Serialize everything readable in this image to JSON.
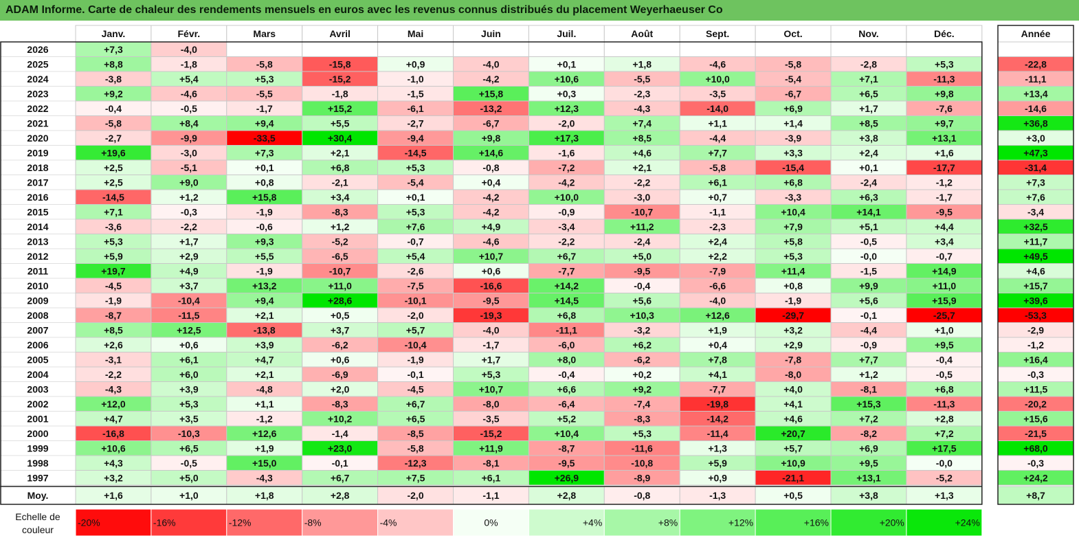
{
  "title": "ADAM Informe. Carte de chaleur des rendements mensuels en euros avec les revenus connus distribués du placement Weyerhaeuser Co",
  "chart_data": {
    "type": "heatmap",
    "columns": [
      "Janv.",
      "Févr.",
      "Mars",
      "Avril",
      "Mai",
      "Juin",
      "Juil.",
      "Août",
      "Sept.",
      "Oct.",
      "Nov.",
      "Déc."
    ],
    "year_column_label": "Année",
    "rows": [
      {
        "label": "2026",
        "values": [
          "+7,3",
          "-4,0",
          null,
          null,
          null,
          null,
          null,
          null,
          null,
          null,
          null,
          null
        ],
        "year": null
      },
      {
        "label": "2025",
        "values": [
          "+8,8",
          "-1,8",
          "-5,8",
          "-15,8",
          "+0,9",
          "-4,0",
          "+0,1",
          "+1,8",
          "-4,6",
          "-5,8",
          "-2,8",
          "+5,3"
        ],
        "year": "-22,8"
      },
      {
        "label": "2024",
        "values": [
          "-3,8",
          "+5,4",
          "+5,3",
          "-15,2",
          "-1,0",
          "-4,2",
          "+10,6",
          "-5,5",
          "+10,0",
          "-5,4",
          "+7,1",
          "-11,3"
        ],
        "year": "-11,1"
      },
      {
        "label": "2023",
        "values": [
          "+9,2",
          "-4,6",
          "-5,5",
          "-1,8",
          "-1,5",
          "+15,8",
          "+0,3",
          "-2,3",
          "-3,5",
          "-6,7",
          "+6,5",
          "+9,8"
        ],
        "year": "+13,4"
      },
      {
        "label": "2022",
        "values": [
          "-0,4",
          "-0,5",
          "-1,7",
          "+15,2",
          "-6,1",
          "-13,2",
          "+12,3",
          "-4,3",
          "-14,0",
          "+6,9",
          "+1,7",
          "-7,6"
        ],
        "year": "-14,6"
      },
      {
        "label": "2021",
        "values": [
          "-5,8",
          "+8,4",
          "+9,4",
          "+5,5",
          "-2,7",
          "-6,7",
          "-2,0",
          "+7,4",
          "+1,1",
          "+1,4",
          "+8,5",
          "+9,7"
        ],
        "year": "+36,8"
      },
      {
        "label": "2020",
        "values": [
          "-2,7",
          "-9,9",
          "-33,5",
          "+30,4",
          "-9,4",
          "+9,8",
          "+17,3",
          "+8,5",
          "-4,4",
          "-3,9",
          "+3,8",
          "+13,1"
        ],
        "year": "+3,0"
      },
      {
        "label": "2019",
        "values": [
          "+19,6",
          "-3,0",
          "+7,3",
          "+2,1",
          "-14,5",
          "+14,6",
          "-1,6",
          "+4,6",
          "+7,7",
          "+3,3",
          "+2,4",
          "+1,6"
        ],
        "year": "+47,3"
      },
      {
        "label": "2018",
        "values": [
          "+2,5",
          "-5,1",
          "+0,1",
          "+6,8",
          "+5,3",
          "-0,8",
          "-7,2",
          "+2,1",
          "-5,8",
          "-15,4",
          "+0,1",
          "-17,7"
        ],
        "year": "-31,4"
      },
      {
        "label": "2017",
        "values": [
          "+2,5",
          "+9,0",
          "+0,8",
          "-2,1",
          "-5,4",
          "+0,4",
          "-4,2",
          "-2,2",
          "+6,1",
          "+6,8",
          "-2,4",
          "-1,2"
        ],
        "year": "+7,3"
      },
      {
        "label": "2016",
        "values": [
          "-14,5",
          "+1,2",
          "+15,8",
          "+3,4",
          "+0,1",
          "-4,2",
          "+10,0",
          "-3,0",
          "+0,7",
          "-3,3",
          "+6,3",
          "-1,7"
        ],
        "year": "+7,6"
      },
      {
        "label": "2015",
        "values": [
          "+7,1",
          "-0,3",
          "-1,9",
          "-8,3",
          "+5,3",
          "-4,2",
          "-0,9",
          "-10,7",
          "-1,1",
          "+10,4",
          "+14,1",
          "-9,5"
        ],
        "year": "-3,4"
      },
      {
        "label": "2014",
        "values": [
          "-3,6",
          "-2,2",
          "-0,6",
          "+1,2",
          "+7,6",
          "+4,9",
          "-3,4",
          "+11,2",
          "-2,3",
          "+7,9",
          "+5,1",
          "+4,4"
        ],
        "year": "+32,5"
      },
      {
        "label": "2013",
        "values": [
          "+5,3",
          "+1,7",
          "+9,3",
          "-5,2",
          "-0,7",
          "-4,6",
          "-2,2",
          "-2,4",
          "+2,4",
          "+5,8",
          "-0,5",
          "+3,4"
        ],
        "year": "+11,7"
      },
      {
        "label": "2012",
        "values": [
          "+5,9",
          "+2,9",
          "+5,5",
          "-6,5",
          "+5,4",
          "+10,7",
          "+6,7",
          "+5,0",
          "+2,2",
          "+5,3",
          "-0,0",
          "-0,7"
        ],
        "year": "+49,5"
      },
      {
        "label": "2011",
        "values": [
          "+19,7",
          "+4,9",
          "-1,9",
          "-10,7",
          "-2,6",
          "+0,6",
          "-7,7",
          "-9,5",
          "-7,9",
          "+11,4",
          "-1,5",
          "+14,9"
        ],
        "year": "+4,6"
      },
      {
        "label": "2010",
        "values": [
          "-4,5",
          "+3,7",
          "+13,2",
          "+11,0",
          "-7,5",
          "-16,6",
          "+14,2",
          "-0,4",
          "-6,6",
          "+0,8",
          "+9,9",
          "+11,0"
        ],
        "year": "+15,7"
      },
      {
        "label": "2009",
        "values": [
          "-1,9",
          "-10,4",
          "+9,4",
          "+28,6",
          "-10,1",
          "-9,5",
          "+14,5",
          "+5,6",
          "-4,0",
          "-1,9",
          "+5,6",
          "+15,9"
        ],
        "year": "+39,6"
      },
      {
        "label": "2008",
        "values": [
          "-8,7",
          "-11,5",
          "+2,1",
          "+0,5",
          "-2,0",
          "-19,3",
          "+6,8",
          "+10,3",
          "+12,6",
          "-29,7",
          "-0,1",
          "-25,7"
        ],
        "year": "-53,3"
      },
      {
        "label": "2007",
        "values": [
          "+8,5",
          "+12,5",
          "-13,8",
          "+3,7",
          "+5,7",
          "-4,0",
          "-11,1",
          "-3,2",
          "+1,9",
          "+3,2",
          "-4,4",
          "+1,0"
        ],
        "year": "-2,9"
      },
      {
        "label": "2006",
        "values": [
          "+2,6",
          "+0,6",
          "+3,9",
          "-6,2",
          "-10,4",
          "-1,7",
          "-6,0",
          "+6,2",
          "+0,4",
          "+2,9",
          "-0,9",
          "+9,5"
        ],
        "year": "-1,2"
      },
      {
        "label": "2005",
        "values": [
          "-3,1",
          "+6,1",
          "+4,7",
          "+0,6",
          "-1,9",
          "+1,7",
          "+8,0",
          "-6,2",
          "+7,8",
          "-7,8",
          "+7,7",
          "-0,4"
        ],
        "year": "+16,4"
      },
      {
        "label": "2004",
        "values": [
          "-2,2",
          "+6,0",
          "+2,1",
          "-6,9",
          "-0,1",
          "+5,3",
          "-0,4",
          "+0,2",
          "+4,1",
          "-8,0",
          "+1,2",
          "-0,5"
        ],
        "year": "-0,3"
      },
      {
        "label": "2003",
        "values": [
          "-4,3",
          "+3,9",
          "-4,8",
          "+2,0",
          "-4,5",
          "+10,7",
          "+6,6",
          "+9,2",
          "-7,7",
          "+4,0",
          "-8,1",
          "+6,8"
        ],
        "year": "+11,5"
      },
      {
        "label": "2002",
        "values": [
          "+12,0",
          "+5,3",
          "+1,1",
          "-8,3",
          "+6,7",
          "-8,0",
          "-6,4",
          "-7,4",
          "-19,8",
          "+4,1",
          "+15,3",
          "-11,3"
        ],
        "year": "-20,2"
      },
      {
        "label": "2001",
        "values": [
          "+4,7",
          "+3,5",
          "-1,2",
          "+10,2",
          "+6,5",
          "-3,5",
          "+5,2",
          "-8,3",
          "-14,2",
          "+4,6",
          "+7,2",
          "+2,8"
        ],
        "year": "+15,6"
      },
      {
        "label": "2000",
        "values": [
          "-16,8",
          "-10,3",
          "+12,6",
          "-1,4",
          "-8,5",
          "-15,2",
          "+10,4",
          "+5,3",
          "-11,4",
          "+20,7",
          "-8,2",
          "+7,2"
        ],
        "year": "-21,5"
      },
      {
        "label": "1999",
        "values": [
          "+10,6",
          "+6,5",
          "+1,9",
          "+23,0",
          "-5,8",
          "+11,9",
          "-8,7",
          "-11,6",
          "+1,3",
          "+5,7",
          "+6,9",
          "+17,5"
        ],
        "year": "+68,0"
      },
      {
        "label": "1998",
        "values": [
          "+4,3",
          "-0,5",
          "+15,0",
          "-0,1",
          "-12,3",
          "-8,1",
          "-9,5",
          "-10,8",
          "+5,9",
          "+10,9",
          "+9,5",
          "-0,0"
        ],
        "year": "-0,3"
      },
      {
        "label": "1997",
        "values": [
          "+3,2",
          "+5,0",
          "-4,3",
          "+6,7",
          "+7,5",
          "+6,1",
          "+26,9",
          "-8,9",
          "+0,9",
          "-21,1",
          "+13,1",
          "-5,2"
        ],
        "year": "+24,2"
      }
    ],
    "average_row": {
      "label": "Moy.",
      "values": [
        "+1,6",
        "+1,0",
        "+1,8",
        "+2,8",
        "-2,0",
        "-1,1",
        "+2,8",
        "-0,8",
        "-1,3",
        "+0,5",
        "+3,8",
        "+1,3"
      ],
      "year": "+8,7"
    },
    "color_scale": {
      "label_line1": "Echelle de",
      "label_line2": "couleur",
      "stops": [
        "-20%",
        "-16%",
        "-12%",
        "-8%",
        "-4%",
        "0%",
        "+4%",
        "+8%",
        "+12%",
        "+16%",
        "+20%",
        "+24%"
      ],
      "stop_values": [
        -20,
        -16,
        -12,
        -8,
        -4,
        0,
        4,
        8,
        12,
        16,
        20,
        24
      ]
    },
    "colors": {
      "title_bg": "#6ec35f",
      "negative_max": "#ff0000",
      "neutral": "#ffffff",
      "positive_max": "#00e000"
    }
  }
}
